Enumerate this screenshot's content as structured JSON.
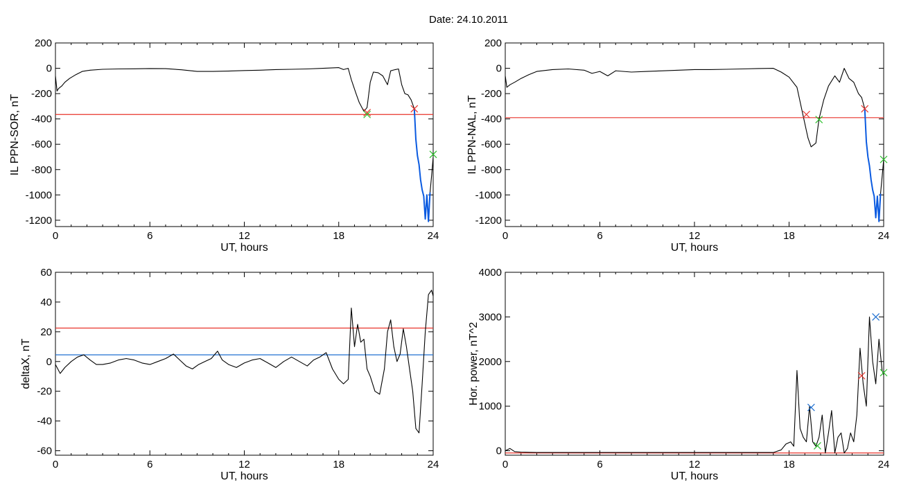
{
  "title": "Date:  24.10.2011",
  "chart_data": [
    {
      "id": "p1",
      "type": "line",
      "xlabel": "UT, hours",
      "ylabel": "IL PPN-SOR, nT",
      "xlim": [
        0,
        24
      ],
      "ylim": [
        -1250,
        200
      ],
      "xticks": [
        0,
        6,
        12,
        18,
        24
      ],
      "yticks": [
        200,
        0,
        -200,
        -400,
        -600,
        -800,
        -1000,
        -1200
      ],
      "threshold": {
        "value": -365,
        "color": "#e8322a"
      },
      "series": [
        {
          "color": "#000000",
          "x": [
            0,
            0.1,
            0.2,
            0.4,
            0.6,
            0.9,
            1.3,
            1.7,
            2.2,
            3,
            4,
            5,
            6,
            7,
            8,
            9,
            10,
            11,
            12,
            13,
            14,
            15,
            16,
            17,
            18,
            18.3,
            18.6,
            18.8,
            19.1,
            19.3,
            19.6,
            19.8,
            20.0,
            20.2,
            20.5,
            20.8,
            21.1,
            21.3,
            21.6,
            21.8,
            22.0,
            22.2,
            22.4,
            22.6,
            22.8
          ],
          "y": [
            -60,
            -180,
            -160,
            -140,
            -110,
            -80,
            -50,
            -25,
            -15,
            -8,
            -5,
            -4,
            -2,
            -3,
            -12,
            -25,
            -25,
            -22,
            -18,
            -15,
            -10,
            -8,
            -5,
            0,
            5,
            -10,
            0,
            -90,
            -200,
            -270,
            -340,
            -310,
            -110,
            -30,
            -35,
            -60,
            -130,
            -20,
            -10,
            -5,
            -130,
            -200,
            -210,
            -250,
            -320
          ]
        },
        {
          "color": "#0a5ae0",
          "x": [
            22.8,
            22.9,
            23.0,
            23.1,
            23.2,
            23.3,
            23.4,
            23.5,
            23.6,
            23.7,
            23.8
          ],
          "y": [
            -320,
            -560,
            -690,
            -760,
            -880,
            -960,
            -1010,
            -1190,
            -1000,
            -1210,
            -980
          ]
        },
        {
          "color": "#000000",
          "x": [
            23.8,
            23.9,
            24.0
          ],
          "y": [
            -980,
            -850,
            -700
          ]
        }
      ],
      "markers": [
        {
          "x": 19.8,
          "y": -350,
          "color": "#e8322a"
        },
        {
          "x": 19.8,
          "y": -365,
          "color": "#2bbf2b"
        },
        {
          "x": 22.8,
          "y": -320,
          "color": "#e8322a"
        },
        {
          "x": 24.0,
          "y": -680,
          "color": "#2bbf2b"
        }
      ]
    },
    {
      "id": "p2",
      "type": "line",
      "xlabel": "UT, hours",
      "ylabel": "IL PPN-NAL, nT",
      "xlim": [
        0,
        24
      ],
      "ylim": [
        -1250,
        200
      ],
      "xticks": [
        0,
        6,
        12,
        18,
        24
      ],
      "yticks": [
        200,
        0,
        -200,
        -400,
        -600,
        -800,
        -1000,
        -1200
      ],
      "threshold": {
        "value": -390,
        "color": "#e8322a"
      },
      "series": [
        {
          "color": "#000000",
          "x": [
            0,
            0.1,
            0.3,
            0.6,
            1,
            1.5,
            2,
            3,
            4,
            5,
            5.5,
            6,
            6.5,
            7,
            8,
            9,
            10,
            11,
            12,
            13,
            14,
            15,
            16,
            17,
            17.5,
            18.0,
            18.5,
            18.9,
            19.2,
            19.4,
            19.7,
            19.9,
            20.2,
            20.5,
            20.9,
            21.2,
            21.5,
            21.8,
            22.1,
            22.4,
            22.6,
            22.8
          ],
          "y": [
            -60,
            -150,
            -130,
            -110,
            -80,
            -50,
            -25,
            -10,
            -5,
            -15,
            -40,
            -25,
            -60,
            -20,
            -30,
            -25,
            -20,
            -15,
            -10,
            -10,
            -8,
            -5,
            -2,
            0,
            -30,
            -70,
            -150,
            -380,
            -550,
            -620,
            -590,
            -400,
            -250,
            -140,
            -60,
            -110,
            0,
            -80,
            -110,
            -200,
            -230,
            -320
          ]
        },
        {
          "color": "#0a5ae0",
          "x": [
            22.8,
            22.9,
            23.0,
            23.1,
            23.2,
            23.3,
            23.4,
            23.5,
            23.6,
            23.7,
            23.8
          ],
          "y": [
            -320,
            -580,
            -700,
            -770,
            -880,
            -960,
            -1010,
            -1180,
            -1010,
            -1210,
            -990
          ]
        },
        {
          "color": "#000000",
          "x": [
            23.8,
            23.9,
            24.0
          ],
          "y": [
            -990,
            -860,
            -720
          ]
        }
      ],
      "markers": [
        {
          "x": 19.1,
          "y": -365,
          "color": "#e8322a"
        },
        {
          "x": 19.9,
          "y": -405,
          "color": "#2bbf2b"
        },
        {
          "x": 22.8,
          "y": -320,
          "color": "#e8322a"
        },
        {
          "x": 24.0,
          "y": -720,
          "color": "#2bbf2b"
        }
      ]
    },
    {
      "id": "p3",
      "type": "line",
      "xlabel": "UT, hours",
      "ylabel": "deltaX, nT",
      "xlim": [
        0,
        24
      ],
      "ylim": [
        -63,
        60
      ],
      "xticks": [
        0,
        6,
        12,
        18,
        24
      ],
      "yticks": [
        60,
        40,
        20,
        0,
        -20,
        -40,
        -60
      ],
      "thresholds": [
        {
          "value": 22.5,
          "color": "#e8322a"
        },
        {
          "value": 4.5,
          "color": "#1f6fd0"
        }
      ],
      "series": [
        {
          "color": "#000000",
          "x": [
            0,
            0.3,
            0.6,
            1.0,
            1.4,
            1.8,
            2.2,
            2.6,
            3.0,
            3.5,
            4.0,
            4.5,
            5.0,
            5.5,
            6.0,
            6.5,
            7.0,
            7.5,
            7.9,
            8.3,
            8.7,
            9.1,
            9.5,
            9.9,
            10.3,
            10.6,
            11.0,
            11.5,
            12.0,
            12.5,
            13.0,
            13.5,
            14.0,
            14.5,
            15.0,
            15.5,
            16.0,
            16.4,
            16.8,
            17.2,
            17.6,
            18.0,
            18.3,
            18.6,
            18.8,
            19.0,
            19.2,
            19.4,
            19.6,
            19.8,
            20.0,
            20.3,
            20.6,
            20.9,
            21.1,
            21.3,
            21.5,
            21.7,
            21.9,
            22.1,
            22.3,
            22.5,
            22.7,
            22.9,
            23.1,
            23.3,
            23.5,
            23.7,
            23.9,
            24.0
          ],
          "y": [
            -2,
            -8,
            -4,
            0,
            3,
            4.5,
            1,
            -2,
            -2,
            -1,
            1,
            2,
            1,
            -1,
            -2,
            0,
            2,
            5,
            1,
            -3,
            -5,
            -2,
            0,
            2,
            7,
            1,
            -2,
            -4,
            -1,
            1,
            2,
            -1,
            -4,
            0,
            3,
            0,
            -3,
            1,
            3,
            6,
            -5,
            -12,
            -15,
            -12,
            36,
            10,
            25,
            13,
            15,
            -5,
            -10,
            -20,
            -22,
            -5,
            20,
            28,
            10,
            0,
            5,
            22,
            10,
            -5,
            -20,
            -45,
            -48,
            -15,
            20,
            45,
            48,
            44
          ]
        }
      ],
      "markers": []
    },
    {
      "id": "p4",
      "type": "line",
      "xlabel": "UT, hours",
      "ylabel": "Hor. power, nT^2",
      "xlim": [
        0,
        24
      ],
      "ylim": [
        -100,
        4000
      ],
      "xticks": [
        0,
        6,
        12,
        18,
        24
      ],
      "yticks": [
        4000,
        3000,
        2000,
        1000,
        0
      ],
      "ytick_labels": [
        "4000",
        "3000",
        "2000",
        "1000",
        "0"
      ],
      "threshold": {
        "value": -50,
        "color": "#e8322a"
      },
      "series": [
        {
          "color": "#000000",
          "x": [
            0,
            0.3,
            0.6,
            1.0,
            2,
            3,
            4,
            5,
            6,
            7,
            8,
            9,
            10,
            11,
            12,
            13,
            14,
            15,
            16,
            17,
            17.5,
            17.8,
            18.1,
            18.3,
            18.5,
            18.7,
            18.9,
            19.1,
            19.3,
            19.5,
            19.7,
            19.9,
            20.1,
            20.3,
            20.5,
            20.7,
            20.9,
            21.1,
            21.3,
            21.5,
            21.7,
            21.9,
            22.1,
            22.3,
            22.5,
            22.7,
            22.9,
            23.1,
            23.3,
            23.5,
            23.7,
            23.9,
            24.0
          ],
          "y": [
            0,
            50,
            -20,
            -30,
            -40,
            -40,
            -40,
            -40,
            -40,
            -40,
            -40,
            -40,
            -40,
            -40,
            -40,
            -40,
            -40,
            -40,
            -40,
            -40,
            20,
            150,
            200,
            100,
            1800,
            500,
            300,
            200,
            1000,
            200,
            100,
            300,
            800,
            -50,
            400,
            900,
            -50,
            300,
            400,
            -50,
            50,
            400,
            200,
            800,
            2300,
            1500,
            1000,
            3000,
            2000,
            1500,
            2500,
            1800,
            1700
          ]
        }
      ],
      "markers": [
        {
          "x": 19.4,
          "y": 970,
          "color": "#1f6fd0"
        },
        {
          "x": 19.8,
          "y": 110,
          "color": "#2bbf2b"
        },
        {
          "x": 22.6,
          "y": 1680,
          "color": "#e8322a"
        },
        {
          "x": 23.5,
          "y": 3000,
          "color": "#1f6fd0"
        },
        {
          "x": 24.0,
          "y": 1750,
          "color": "#2bbf2b"
        }
      ]
    }
  ]
}
